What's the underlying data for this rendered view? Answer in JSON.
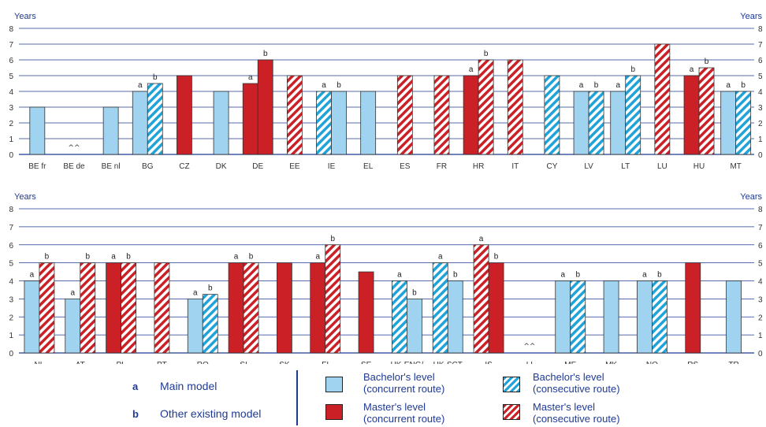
{
  "chart_data": [
    {
      "type": "bar",
      "y_unit_label": "Years",
      "ylim": [
        0,
        8
      ],
      "yticks": [
        0,
        1,
        2,
        3,
        4,
        5,
        6,
        7,
        8
      ],
      "grid": true,
      "categories": [
        {
          "code": "BE fr",
          "bars": [
            {
              "value": 3,
              "kind": "bachelor_concurrent"
            }
          ]
        },
        {
          "code": "BE de",
          "bars": [],
          "marker": "^^"
        },
        {
          "code": "BE nl",
          "bars": [
            {
              "value": 3,
              "kind": "bachelor_concurrent"
            }
          ]
        },
        {
          "code": "BG",
          "bars": [
            {
              "value": 4,
              "kind": "bachelor_concurrent",
              "model": "a"
            },
            {
              "value": 4.5,
              "kind": "bachelor_consecutive",
              "model": "b"
            }
          ]
        },
        {
          "code": "CZ",
          "bars": [
            {
              "value": 5,
              "kind": "master_concurrent"
            }
          ]
        },
        {
          "code": "DK",
          "bars": [
            {
              "value": 4,
              "kind": "bachelor_concurrent"
            }
          ]
        },
        {
          "code": "DE",
          "bars": [
            {
              "value": 4.5,
              "kind": "master_concurrent",
              "model": "a"
            },
            {
              "value": 6,
              "kind": "master_concurrent",
              "model": "b"
            }
          ]
        },
        {
          "code": "EE",
          "bars": [
            {
              "value": 5,
              "kind": "master_consecutive"
            }
          ]
        },
        {
          "code": "IE",
          "bars": [
            {
              "value": 4,
              "kind": "bachelor_consecutive",
              "model": "a"
            },
            {
              "value": 4,
              "kind": "bachelor_concurrent",
              "model": "b"
            }
          ]
        },
        {
          "code": "EL",
          "bars": [
            {
              "value": 4,
              "kind": "bachelor_concurrent"
            }
          ]
        },
        {
          "code": "ES",
          "bars": [
            {
              "value": 5,
              "kind": "master_consecutive"
            }
          ]
        },
        {
          "code": "FR",
          "bars": [
            {
              "value": 5,
              "kind": "master_consecutive"
            }
          ]
        },
        {
          "code": "HR",
          "bars": [
            {
              "value": 5,
              "kind": "master_concurrent",
              "model": "a"
            },
            {
              "value": 6,
              "kind": "master_consecutive",
              "model": "b"
            }
          ]
        },
        {
          "code": "IT",
          "bars": [
            {
              "value": 6,
              "kind": "master_consecutive"
            }
          ]
        },
        {
          "code": "CY",
          "bars": [
            {
              "value": 5,
              "kind": "bachelor_consecutive"
            }
          ]
        },
        {
          "code": "LV",
          "bars": [
            {
              "value": 4,
              "kind": "bachelor_concurrent",
              "model": "a"
            },
            {
              "value": 4,
              "kind": "bachelor_consecutive",
              "model": "b"
            }
          ]
        },
        {
          "code": "LT",
          "bars": [
            {
              "value": 4,
              "kind": "bachelor_concurrent",
              "model": "a"
            },
            {
              "value": 5,
              "kind": "bachelor_consecutive",
              "model": "b"
            }
          ]
        },
        {
          "code": "LU",
          "bars": [
            {
              "value": 7,
              "kind": "master_consecutive"
            }
          ]
        },
        {
          "code": "HU",
          "bars": [
            {
              "value": 5,
              "kind": "master_concurrent",
              "model": "a"
            },
            {
              "value": 5.5,
              "kind": "master_consecutive",
              "model": "b"
            }
          ]
        },
        {
          "code": "MT",
          "bars": [
            {
              "value": 4,
              "kind": "bachelor_concurrent",
              "model": "a"
            },
            {
              "value": 4,
              "kind": "bachelor_consecutive",
              "model": "b"
            }
          ]
        }
      ]
    },
    {
      "type": "bar",
      "y_unit_label": "Years",
      "ylim": [
        0,
        8
      ],
      "yticks": [
        0,
        1,
        2,
        3,
        4,
        5,
        6,
        7,
        8
      ],
      "grid": true,
      "categories": [
        {
          "code": "NL",
          "bars": [
            {
              "value": 4,
              "kind": "bachelor_concurrent",
              "model": "a"
            },
            {
              "value": 5,
              "kind": "master_consecutive",
              "model": "b"
            }
          ]
        },
        {
          "code": "AT",
          "bars": [
            {
              "value": 3,
              "kind": "bachelor_concurrent",
              "model": "a"
            },
            {
              "value": 5,
              "kind": "master_consecutive",
              "model": "b"
            }
          ]
        },
        {
          "code": "PL",
          "bars": [
            {
              "value": 5,
              "kind": "master_concurrent",
              "model": "a"
            },
            {
              "value": 5,
              "kind": "master_consecutive",
              "model": "b"
            }
          ]
        },
        {
          "code": "PT",
          "bars": [
            {
              "value": 5,
              "kind": "master_consecutive"
            }
          ]
        },
        {
          "code": "RO",
          "bars": [
            {
              "value": 3,
              "kind": "bachelor_concurrent",
              "model": "a"
            },
            {
              "value": 3.25,
              "kind": "bachelor_consecutive",
              "model": "b"
            }
          ]
        },
        {
          "code": "SI",
          "bars": [
            {
              "value": 5,
              "kind": "master_concurrent",
              "model": "a"
            },
            {
              "value": 5,
              "kind": "master_consecutive",
              "model": "b"
            }
          ]
        },
        {
          "code": "SK",
          "bars": [
            {
              "value": 5,
              "kind": "master_concurrent"
            }
          ]
        },
        {
          "code": "FI",
          "bars": [
            {
              "value": 5,
              "kind": "master_concurrent",
              "model": "a"
            },
            {
              "value": 6,
              "kind": "master_consecutive",
              "model": "b"
            }
          ]
        },
        {
          "code": "SE",
          "bars": [
            {
              "value": 4.5,
              "kind": "master_concurrent"
            }
          ]
        },
        {
          "code": "UK-ENG/\nWLS/NIR",
          "bars": [
            {
              "value": 4,
              "kind": "bachelor_consecutive",
              "model": "a"
            },
            {
              "value": 3,
              "kind": "bachelor_concurrent",
              "model": "b"
            }
          ]
        },
        {
          "code": "UK-SCT",
          "bars": [
            {
              "value": 5,
              "kind": "bachelor_consecutive",
              "model": "a"
            },
            {
              "value": 4,
              "kind": "bachelor_concurrent",
              "model": "b"
            }
          ]
        },
        {
          "code": "IS",
          "bars": [
            {
              "value": 6,
              "kind": "master_consecutive",
              "model": "a"
            },
            {
              "value": 5,
              "kind": "master_concurrent",
              "model": "b"
            }
          ]
        },
        {
          "code": "LI",
          "bars": [],
          "marker": "^^"
        },
        {
          "code": "ME",
          "bars": [
            {
              "value": 4,
              "kind": "bachelor_concurrent",
              "model": "a"
            },
            {
              "value": 4,
              "kind": "bachelor_consecutive",
              "model": "b"
            }
          ]
        },
        {
          "code": "MK",
          "bars": [
            {
              "value": 4,
              "kind": "bachelor_concurrent"
            }
          ]
        },
        {
          "code": "NO",
          "bars": [
            {
              "value": 4,
              "kind": "bachelor_concurrent",
              "model": "a"
            },
            {
              "value": 4,
              "kind": "bachelor_consecutive",
              "model": "b"
            }
          ]
        },
        {
          "code": "RS",
          "bars": [
            {
              "value": 5,
              "kind": "master_concurrent"
            }
          ]
        },
        {
          "code": "TR",
          "bars": [
            {
              "value": 4,
              "kind": "bachelor_concurrent"
            }
          ]
        }
      ]
    }
  ],
  "colors": {
    "axis_text": "#1f3a93",
    "bachelor_fill": "#9fd3ef",
    "bachelor_stripe": "#1fa3d8",
    "master_fill": "#cc2027",
    "grid": "#1f3a93"
  },
  "legend": {
    "model_a_key": "a",
    "model_a_text": "Main model",
    "model_b_key": "b",
    "model_b_text": "Other existing model",
    "bachelor_concurrent": "Bachelor's level\n(concurrent route)",
    "bachelor_consecutive": "Bachelor's level\n(consecutive route)",
    "master_concurrent": "Master's level\n(concurrent route)",
    "master_consecutive": "Master's level\n(consecutive route)"
  }
}
